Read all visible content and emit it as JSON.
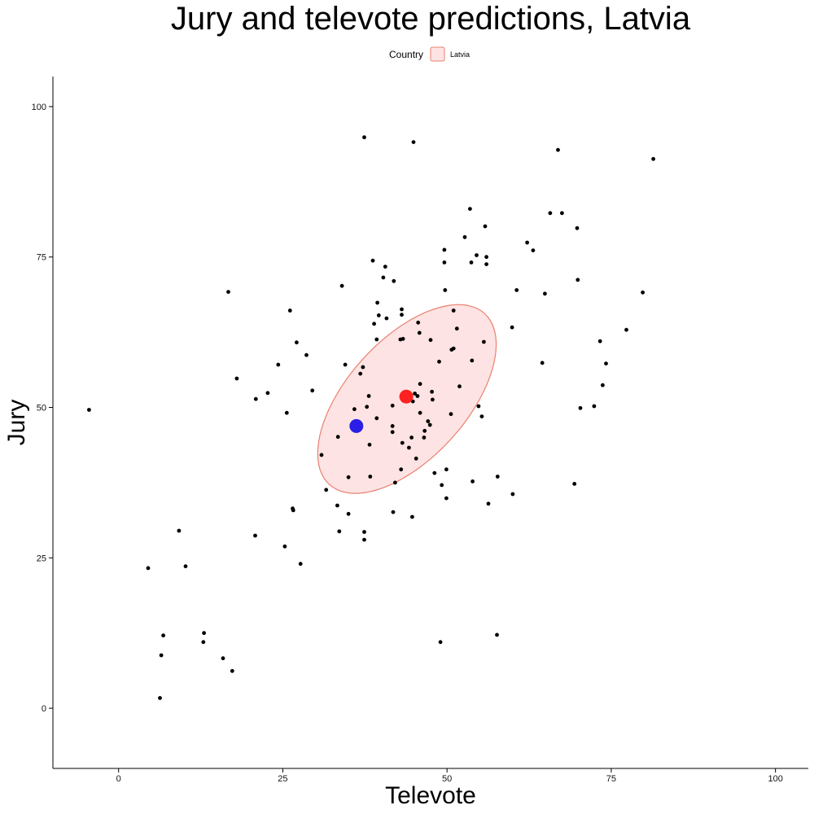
{
  "chart_data": {
    "type": "scatter",
    "title": "Jury and televote predictions, Latvia",
    "xlabel": "Televote",
    "ylabel": "Jury",
    "xlim": [
      -10,
      105
    ],
    "ylim": [
      -10,
      105
    ],
    "xticks": [
      0,
      25,
      50,
      75,
      100
    ],
    "yticks": [
      0,
      25,
      50,
      75,
      100
    ],
    "xtick_labels": [
      "0",
      "25",
      "50",
      "75",
      "100"
    ],
    "ytick_labels": [
      "0",
      "25",
      "50",
      "75",
      "100"
    ],
    "grid": false,
    "legend": {
      "title": "Country",
      "placement": "top-center",
      "entries": [
        {
          "label": "Latvia",
          "fill": "#fde3e3",
          "stroke": "#e9806f"
        }
      ]
    },
    "colors": {
      "points": "#000000",
      "ellipse_fill": "#fde3e3",
      "ellipse_stroke": "#e9806f",
      "red_marker": "#ff2020",
      "blue_marker": "#2a1ee6"
    },
    "ellipse": {
      "center": [
        43.9,
        51.4
      ],
      "semi_major": 18.5,
      "semi_minor": 9.4,
      "angle_deg": 52
    },
    "highlight_points": [
      {
        "x": 43.8,
        "y": 51.8,
        "color": "red"
      },
      {
        "x": 36.2,
        "y": 46.9,
        "color": "blue"
      }
    ],
    "points": [
      {
        "x": -4.5,
        "y": 49.6
      },
      {
        "x": 4.5,
        "y": 23.3
      },
      {
        "x": 6.3,
        "y": 1.7
      },
      {
        "x": 6.5,
        "y": 8.8
      },
      {
        "x": 6.8,
        "y": 12.1
      },
      {
        "x": 9.2,
        "y": 29.5
      },
      {
        "x": 10.2,
        "y": 23.6
      },
      {
        "x": 12.9,
        "y": 11.0
      },
      {
        "x": 13.0,
        "y": 12.5
      },
      {
        "x": 15.9,
        "y": 8.3
      },
      {
        "x": 16.7,
        "y": 69.2
      },
      {
        "x": 17.3,
        "y": 6.2
      },
      {
        "x": 18.0,
        "y": 54.8
      },
      {
        "x": 20.8,
        "y": 28.7
      },
      {
        "x": 20.9,
        "y": 51.4
      },
      {
        "x": 22.7,
        "y": 52.4
      },
      {
        "x": 24.3,
        "y": 57.1
      },
      {
        "x": 25.3,
        "y": 26.9
      },
      {
        "x": 25.6,
        "y": 49.1
      },
      {
        "x": 26.1,
        "y": 66.1
      },
      {
        "x": 26.5,
        "y": 33.2
      },
      {
        "x": 26.6,
        "y": 32.9
      },
      {
        "x": 27.1,
        "y": 60.8
      },
      {
        "x": 27.7,
        "y": 24.0
      },
      {
        "x": 28.6,
        "y": 58.7
      },
      {
        "x": 29.5,
        "y": 52.8
      },
      {
        "x": 30.9,
        "y": 42.1
      },
      {
        "x": 31.6,
        "y": 36.3
      },
      {
        "x": 33.3,
        "y": 33.7
      },
      {
        "x": 33.4,
        "y": 45.1
      },
      {
        "x": 33.6,
        "y": 29.4
      },
      {
        "x": 34.0,
        "y": 70.2
      },
      {
        "x": 34.5,
        "y": 57.1
      },
      {
        "x": 35.0,
        "y": 38.4
      },
      {
        "x": 35.0,
        "y": 32.3
      },
      {
        "x": 35.9,
        "y": 49.7
      },
      {
        "x": 36.8,
        "y": 55.6
      },
      {
        "x": 37.2,
        "y": 56.7
      },
      {
        "x": 37.4,
        "y": 94.9
      },
      {
        "x": 37.4,
        "y": 29.3
      },
      {
        "x": 37.4,
        "y": 28.0
      },
      {
        "x": 37.8,
        "y": 50.1
      },
      {
        "x": 38.1,
        "y": 51.9
      },
      {
        "x": 38.2,
        "y": 43.8
      },
      {
        "x": 38.3,
        "y": 38.5
      },
      {
        "x": 38.7,
        "y": 74.4
      },
      {
        "x": 38.9,
        "y": 63.9
      },
      {
        "x": 39.3,
        "y": 48.2
      },
      {
        "x": 39.3,
        "y": 61.3
      },
      {
        "x": 39.4,
        "y": 67.4
      },
      {
        "x": 39.6,
        "y": 65.3
      },
      {
        "x": 40.3,
        "y": 71.6
      },
      {
        "x": 40.6,
        "y": 73.4
      },
      {
        "x": 40.8,
        "y": 64.8
      },
      {
        "x": 41.7,
        "y": 46.9
      },
      {
        "x": 41.7,
        "y": 50.3
      },
      {
        "x": 41.7,
        "y": 45.9
      },
      {
        "x": 41.8,
        "y": 32.6
      },
      {
        "x": 41.9,
        "y": 71.0
      },
      {
        "x": 42.1,
        "y": 37.5
      },
      {
        "x": 42.9,
        "y": 61.3
      },
      {
        "x": 43.0,
        "y": 39.7
      },
      {
        "x": 43.1,
        "y": 65.4
      },
      {
        "x": 43.1,
        "y": 66.3
      },
      {
        "x": 43.2,
        "y": 44.1
      },
      {
        "x": 43.3,
        "y": 61.4
      },
      {
        "x": 44.2,
        "y": 43.3
      },
      {
        "x": 44.6,
        "y": 45.0
      },
      {
        "x": 44.7,
        "y": 31.8
      },
      {
        "x": 44.8,
        "y": 51.0
      },
      {
        "x": 44.9,
        "y": 94.1
      },
      {
        "x": 45.1,
        "y": 52.3
      },
      {
        "x": 45.3,
        "y": 41.5
      },
      {
        "x": 45.5,
        "y": 51.9
      },
      {
        "x": 45.6,
        "y": 64.1
      },
      {
        "x": 45.8,
        "y": 62.4
      },
      {
        "x": 45.9,
        "y": 53.9
      },
      {
        "x": 45.9,
        "y": 49.1
      },
      {
        "x": 46.5,
        "y": 45.0
      },
      {
        "x": 46.6,
        "y": 46.1
      },
      {
        "x": 47.1,
        "y": 47.7
      },
      {
        "x": 47.4,
        "y": 47.1
      },
      {
        "x": 47.5,
        "y": 61.2
      },
      {
        "x": 47.7,
        "y": 52.6
      },
      {
        "x": 47.8,
        "y": 51.3
      },
      {
        "x": 48.1,
        "y": 39.1
      },
      {
        "x": 48.8,
        "y": 57.6
      },
      {
        "x": 49.0,
        "y": 11.0
      },
      {
        "x": 49.2,
        "y": 37.1
      },
      {
        "x": 49.6,
        "y": 76.2
      },
      {
        "x": 49.6,
        "y": 74.1
      },
      {
        "x": 49.7,
        "y": 69.5
      },
      {
        "x": 49.9,
        "y": 34.9
      },
      {
        "x": 49.9,
        "y": 39.7
      },
      {
        "x": 50.6,
        "y": 48.9
      },
      {
        "x": 50.7,
        "y": 59.6
      },
      {
        "x": 51.0,
        "y": 66.1
      },
      {
        "x": 51.0,
        "y": 59.8
      },
      {
        "x": 51.5,
        "y": 63.1
      },
      {
        "x": 51.9,
        "y": 53.5
      },
      {
        "x": 52.7,
        "y": 78.3
      },
      {
        "x": 53.5,
        "y": 83.0
      },
      {
        "x": 53.7,
        "y": 74.1
      },
      {
        "x": 53.8,
        "y": 57.8
      },
      {
        "x": 53.9,
        "y": 37.7
      },
      {
        "x": 54.5,
        "y": 75.3
      },
      {
        "x": 54.8,
        "y": 50.2
      },
      {
        "x": 55.3,
        "y": 48.5
      },
      {
        "x": 55.6,
        "y": 60.9
      },
      {
        "x": 55.8,
        "y": 80.1
      },
      {
        "x": 56.0,
        "y": 75.0
      },
      {
        "x": 56.0,
        "y": 73.8
      },
      {
        "x": 56.3,
        "y": 34.0
      },
      {
        "x": 57.6,
        "y": 12.2
      },
      {
        "x": 57.7,
        "y": 38.5
      },
      {
        "x": 59.9,
        "y": 63.3
      },
      {
        "x": 60.0,
        "y": 35.6
      },
      {
        "x": 60.6,
        "y": 69.5
      },
      {
        "x": 62.2,
        "y": 77.4
      },
      {
        "x": 63.1,
        "y": 76.1
      },
      {
        "x": 64.5,
        "y": 57.4
      },
      {
        "x": 64.9,
        "y": 68.9
      },
      {
        "x": 65.7,
        "y": 82.3
      },
      {
        "x": 66.9,
        "y": 92.8
      },
      {
        "x": 67.5,
        "y": 82.3
      },
      {
        "x": 69.4,
        "y": 37.3
      },
      {
        "x": 69.8,
        "y": 79.8
      },
      {
        "x": 69.9,
        "y": 71.2
      },
      {
        "x": 70.3,
        "y": 49.9
      },
      {
        "x": 72.4,
        "y": 50.2
      },
      {
        "x": 73.3,
        "y": 61.0
      },
      {
        "x": 73.7,
        "y": 53.7
      },
      {
        "x": 74.2,
        "y": 57.3
      },
      {
        "x": 77.3,
        "y": 62.9
      },
      {
        "x": 79.8,
        "y": 69.1
      },
      {
        "x": 81.4,
        "y": 91.3
      }
    ]
  }
}
